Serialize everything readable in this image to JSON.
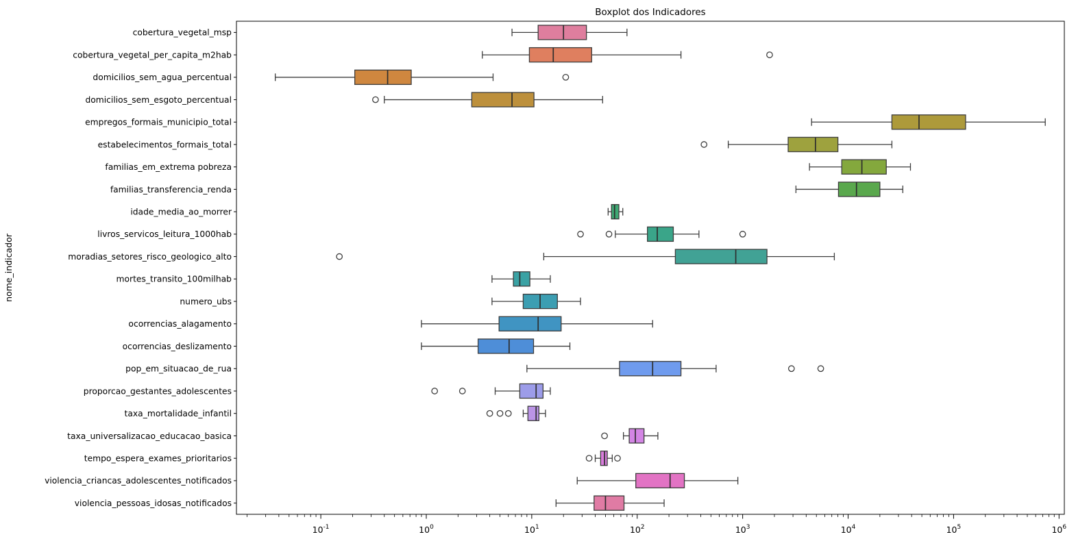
{
  "chart_data": {
    "type": "boxplot",
    "orientation": "horizontal",
    "title": "Boxplot dos Indicadores",
    "xlabel": "",
    "ylabel": "nome_indicador",
    "x_scale": "log",
    "x_domain_log10": [
      -1.8,
      6.05
    ],
    "x_tick_exponents": [
      -1,
      0,
      1,
      2,
      3,
      4,
      5,
      6
    ],
    "grid": false,
    "legend": "none",
    "rows": [
      {
        "label": "cobertura_vegetal_msp",
        "color": "#df7e9e",
        "whisker_low": 6.5,
        "q1": 11.5,
        "median": 20,
        "q3": 33,
        "whisker_high": 80,
        "outliers": []
      },
      {
        "label": "cobertura_vegetal_per_capita_m2hab",
        "color": "#df7f5f",
        "whisker_low": 3.4,
        "q1": 9.5,
        "median": 16,
        "q3": 37,
        "whisker_high": 260,
        "outliers": [
          1800
        ]
      },
      {
        "label": "domicilios_sem_agua_percentual",
        "color": "#cf873f",
        "whisker_low": 0.037,
        "q1": 0.21,
        "median": 0.43,
        "q3": 0.72,
        "whisker_high": 4.3,
        "outliers": [
          21
        ]
      },
      {
        "label": "domicilios_sem_esgoto_percentual",
        "color": "#bd903c",
        "whisker_low": 0.4,
        "q1": 2.7,
        "median": 6.5,
        "q3": 10.5,
        "whisker_high": 47,
        "outliers": [
          0.33
        ]
      },
      {
        "label": "empregos_formais_municipio_total",
        "color": "#ad9a3b",
        "whisker_low": 4500,
        "q1": 26000,
        "median": 47000,
        "q3": 130000,
        "whisker_high": 740000,
        "outliers": []
      },
      {
        "label": "estabelecimentos_formais_total",
        "color": "#9ea23e",
        "whisker_low": 730,
        "q1": 2700,
        "median": 4900,
        "q3": 8000,
        "whisker_high": 26000,
        "outliers": [
          430
        ]
      },
      {
        "label": "familias_em_extrema pobreza",
        "color": "#84a83d",
        "whisker_low": 4300,
        "q1": 8700,
        "median": 13500,
        "q3": 23000,
        "whisker_high": 39000,
        "outliers": []
      },
      {
        "label": "familias_transferencia_renda",
        "color": "#5aa84d",
        "whisker_low": 3200,
        "q1": 8100,
        "median": 12000,
        "q3": 20000,
        "whisker_high": 33000,
        "outliers": []
      },
      {
        "label": "idade_media_ao_morrer",
        "color": "#3ea873",
        "whisker_low": 53,
        "q1": 57,
        "median": 61,
        "q3": 67,
        "whisker_high": 73,
        "outliers": []
      },
      {
        "label": "livros_servicos_leitura_1000hab",
        "color": "#3aa589",
        "whisker_low": 62,
        "q1": 125,
        "median": 155,
        "q3": 220,
        "whisker_high": 385,
        "outliers": [
          29,
          54,
          1000
        ]
      },
      {
        "label": "moradias_setores_risco_geologico_alto",
        "color": "#41a295",
        "whisker_low": 13,
        "q1": 230,
        "median": 860,
        "q3": 1700,
        "whisker_high": 7400,
        "outliers": [
          0.15
        ]
      },
      {
        "label": "mortes_transito_100milhab",
        "color": "#3aa2a4",
        "whisker_low": 4.2,
        "q1": 6.7,
        "median": 7.7,
        "q3": 9.6,
        "whisker_high": 15,
        "outliers": []
      },
      {
        "label": "numero_ubs",
        "color": "#3c9eb2",
        "whisker_low": 4.2,
        "q1": 8.3,
        "median": 12,
        "q3": 17.5,
        "whisker_high": 29,
        "outliers": []
      },
      {
        "label": "ocorrencias_alagamento",
        "color": "#4094c2",
        "whisker_low": 0.9,
        "q1": 4.9,
        "median": 11.5,
        "q3": 19,
        "whisker_high": 140,
        "outliers": []
      },
      {
        "label": "ocorrencias_deslizamento",
        "color": "#4e8ed8",
        "whisker_low": 0.9,
        "q1": 3.1,
        "median": 6.1,
        "q3": 10.4,
        "whisker_high": 23,
        "outliers": []
      },
      {
        "label": "pop_em_situacao_de_rua",
        "color": "#6f9bee",
        "whisker_low": 9,
        "q1": 68,
        "median": 140,
        "q3": 260,
        "whisker_high": 560,
        "outliers": [
          2900,
          5500
        ]
      },
      {
        "label": "proporcao_gestantes_adolescentes",
        "color": "#9c9ce9",
        "whisker_low": 4.5,
        "q1": 7.7,
        "median": 11,
        "q3": 12.8,
        "whisker_high": 15,
        "outliers": [
          1.2,
          2.2
        ]
      },
      {
        "label": "taxa_mortalidade_infantil",
        "color": "#bb94e6",
        "whisker_low": 8.3,
        "q1": 9.2,
        "median": 11,
        "q3": 11.7,
        "whisker_high": 13.5,
        "outliers": [
          4,
          5,
          6
        ]
      },
      {
        "label": "taxa_universalizacao_educacao_basica",
        "color": "#d385e4",
        "whisker_low": 74,
        "q1": 84,
        "median": 96,
        "q3": 116,
        "whisker_high": 157,
        "outliers": [
          49
        ]
      },
      {
        "label": "tempo_espera_exames_prioritarios",
        "color": "#d97ddc",
        "whisker_low": 40,
        "q1": 45,
        "median": 49,
        "q3": 52,
        "whisker_high": 58,
        "outliers": [
          35,
          65
        ]
      },
      {
        "label": "violencia_criancas_adolescentes_notificados",
        "color": "#e273c4",
        "whisker_low": 27,
        "q1": 97,
        "median": 205,
        "q3": 280,
        "whisker_high": 900,
        "outliers": []
      },
      {
        "label": "violencia_pessoas_idosas_notificados",
        "color": "#e07ba4",
        "whisker_low": 17,
        "q1": 39,
        "median": 50,
        "q3": 75,
        "whisker_high": 180,
        "outliers": []
      }
    ]
  },
  "styles": {
    "background": "#ffffff",
    "axis_color": "#000000",
    "box_stroke": "#3d3d3d",
    "median_color": "#2e2e2e",
    "whisker_color": "#3d3d3d",
    "outlier_stroke": "#3d3d3d"
  }
}
